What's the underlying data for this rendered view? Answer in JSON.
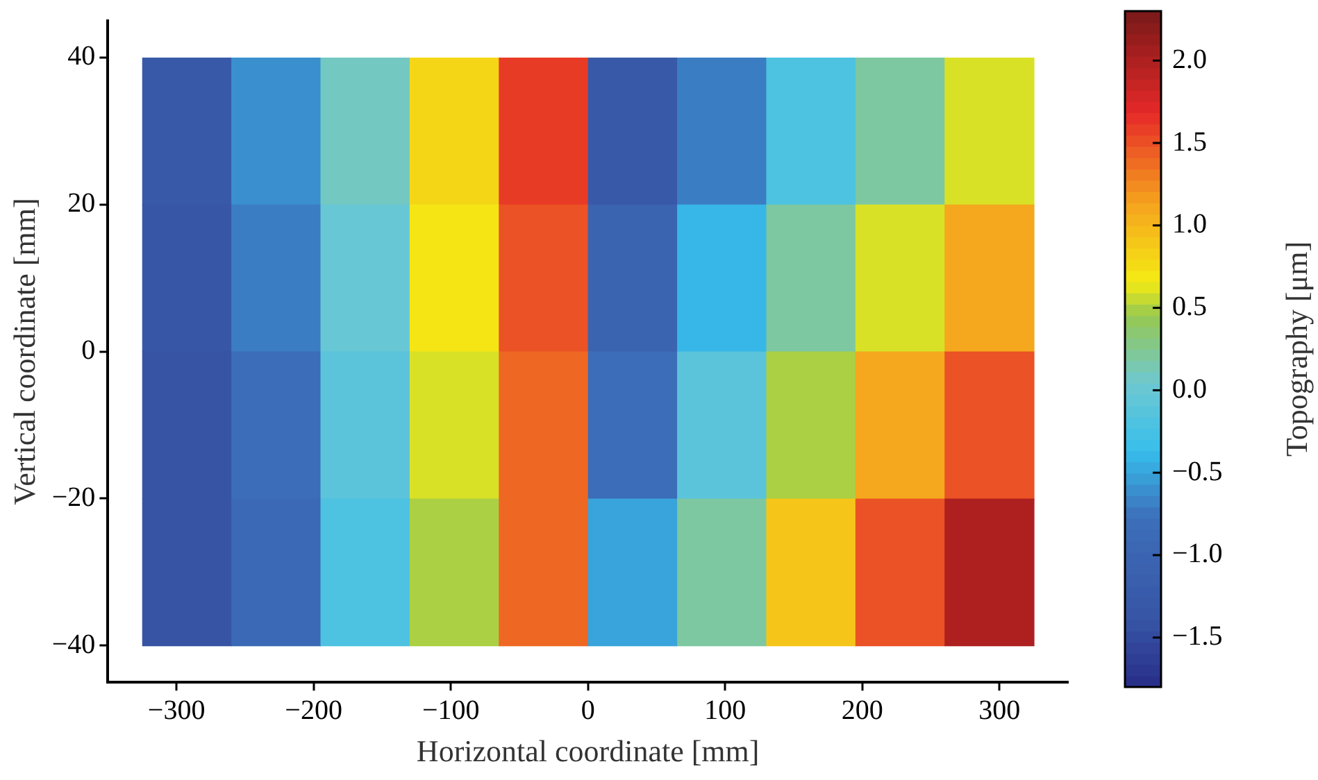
{
  "chart_data": {
    "type": "heatmap",
    "xlabel": "Horizontal coordinate [mm]",
    "ylabel": "Vertical coordinate [mm]",
    "clabel": "Topography [μm]",
    "x": [
      -292.5,
      -227.5,
      -162.5,
      -97.5,
      -32.5,
      32.5,
      97.5,
      162.5,
      227.5,
      292.5
    ],
    "y": [
      30,
      10,
      -10,
      -30
    ],
    "cells": [
      [
        -1.3,
        -0.6,
        0.1,
        0.8,
        1.6,
        -1.3,
        -0.7,
        -0.2,
        0.2,
        0.6
      ],
      [
        -1.35,
        -0.7,
        0.0,
        0.7,
        1.5,
        -1.05,
        -0.4,
        0.2,
        0.6,
        1.1
      ],
      [
        -1.4,
        -0.8,
        -0.1,
        0.6,
        1.4,
        -0.8,
        -0.1,
        0.5,
        1.1,
        1.5
      ],
      [
        -1.4,
        -0.9,
        -0.2,
        0.5,
        1.4,
        -0.5,
        0.2,
        0.9,
        1.5,
        2.0
      ]
    ],
    "xlim": [
      -350,
      350
    ],
    "xticks": [
      {
        "value": -300,
        "label": "−300"
      },
      {
        "value": -200,
        "label": "−200"
      },
      {
        "value": -100,
        "label": "−100"
      },
      0,
      100,
      200,
      300
    ],
    "ylim": [
      -45,
      45
    ],
    "yticks": [
      {
        "value": -40,
        "label": "−40"
      },
      {
        "value": -20,
        "label": "−20"
      },
      0,
      20,
      40
    ],
    "clim": [
      -1.8,
      2.3
    ],
    "cticks": [
      {
        "value": -1.5,
        "label": "−1.5"
      },
      {
        "value": -1.0,
        "label": "−1.0"
      },
      {
        "value": -0.5,
        "label": "−0.5"
      },
      {
        "value": 0.0,
        "label": "0.0"
      },
      {
        "value": 0.5,
        "label": "0.5"
      },
      {
        "value": 1.0,
        "label": "1.0"
      },
      {
        "value": 1.5,
        "label": "1.5"
      },
      {
        "value": 2.0,
        "label": "2.0"
      }
    ],
    "grid": false
  }
}
